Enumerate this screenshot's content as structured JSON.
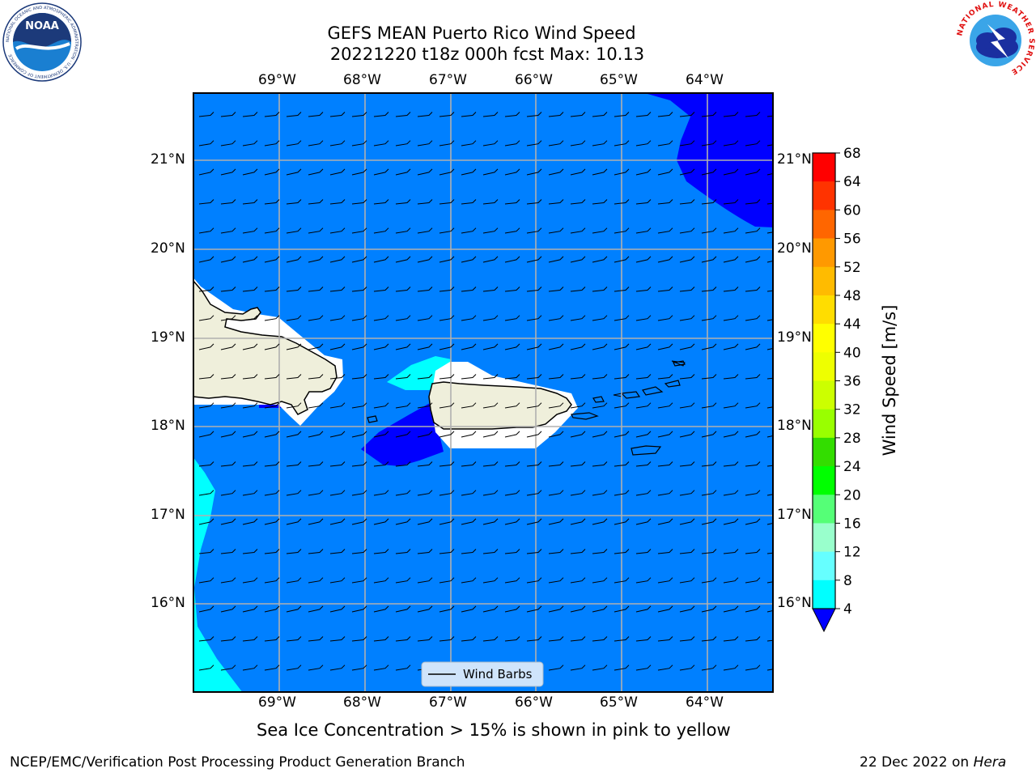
{
  "title": {
    "line1": "GEFS MEAN Puerto Rico Wind Speed",
    "line2": "20221220 t18z 000h fcst   Max: 10.13"
  },
  "map": {
    "lon_labels": [
      "69°W",
      "68°W",
      "67°W",
      "66°W",
      "65°W",
      "64°W"
    ],
    "lat_labels": [
      "21°N",
      "20°N",
      "19°N",
      "18°N",
      "17°N",
      "16°N"
    ],
    "legend_label": "Wind Barbs",
    "colors": {
      "ocean_4_8": "#0080ff",
      "band_lt_4": "#0000ff",
      "band_8_12": "#00ffff",
      "land": "#efefdb",
      "grid": "#b0b0b0"
    }
  },
  "colorbar": {
    "label": "Wind Speed [m/s]",
    "ticks": [
      "68",
      "64",
      "60",
      "56",
      "52",
      "48",
      "44",
      "40",
      "36",
      "32",
      "28",
      "24",
      "20",
      "16",
      "12",
      "8",
      "4"
    ],
    "colors": [
      "#ff0000",
      "#ff3300",
      "#ff6600",
      "#ff9900",
      "#ffbb00",
      "#ffdd00",
      "#ffff00",
      "#eeff00",
      "#ccff00",
      "#99ff00",
      "#33dd00",
      "#00ff00",
      "#55ff77",
      "#99ffcc",
      "#66ffff",
      "#00ffff",
      "#0080ff"
    ],
    "underflow_color": "#0000ff"
  },
  "subtitle": "Sea Ice Concentration > 15% is shown in pink to yellow",
  "footer": {
    "left": "NCEP/EMC/Verification Post Processing Product Generation Branch",
    "date": "22 Dec 2022 on ",
    "machine": "Hera"
  },
  "logos": {
    "noaa": {
      "text": "NOAA",
      "ring": "NATIONAL OCEANIC AND ATMOSPHERIC ADMINISTRATION · U.S. DEPARTMENT OF COMMERCE"
    },
    "nws": {
      "ring": "NATIONAL WEATHER SERVICE"
    }
  }
}
